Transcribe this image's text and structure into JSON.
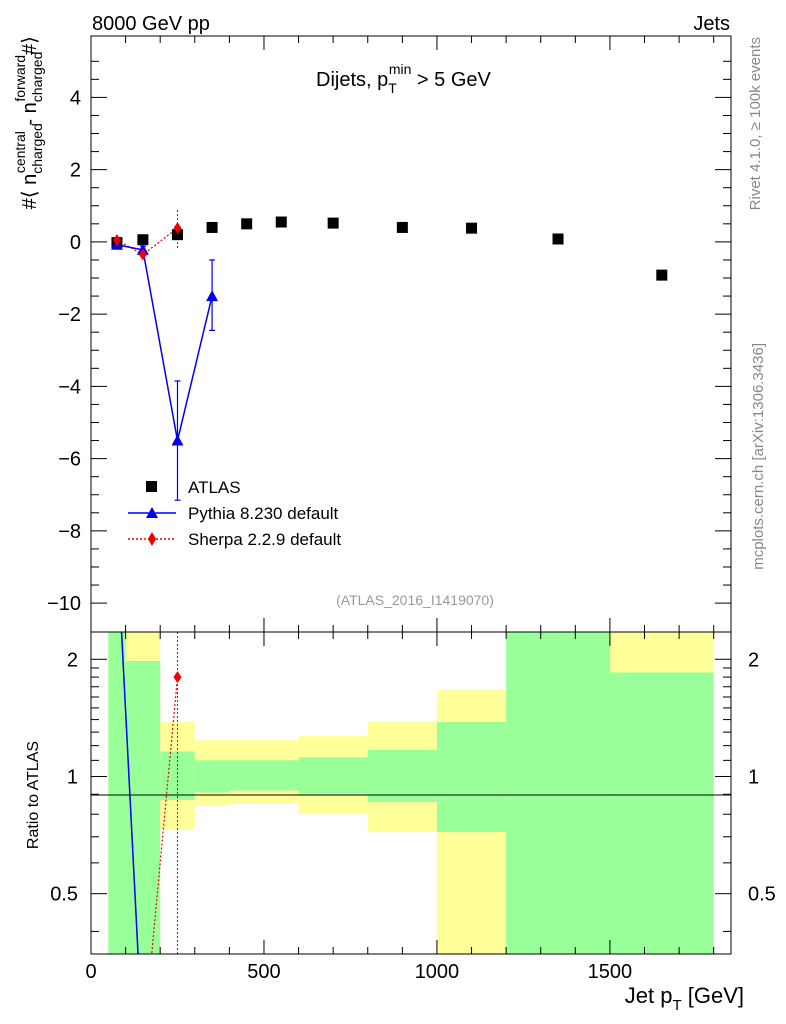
{
  "header": {
    "left": "8000 GeV pp",
    "right": "Jets"
  },
  "side_text": {
    "rivet": "Rivet 4.1.0, ≥ 100k events",
    "mcplots": "mcplots.cern.ch [arXiv:1306.3436]"
  },
  "chart_data": [
    {
      "type": "scatter",
      "panel": "main",
      "title": "Dijets, p_T^min > 5 GeV",
      "title_parts": {
        "main": "Dijets, p",
        "sub": "T",
        "sup": "min",
        "tail": " > 5 GeV"
      },
      "watermark": "(ATLAS_2016_I1419070)",
      "ylabel": "#⟨ n_charged^central - n_charged^forward #⟩",
      "ylabel_parts": {
        "open": "#⟨ n",
        "sub1": "charged",
        "sup1": "central",
        "mid": " - n",
        "sub2": "charged",
        "sup2": "forward",
        "close": "#⟩"
      },
      "xlim": [
        0,
        1850
      ],
      "ylim": [
        -10.8,
        5.7
      ],
      "yticks": [
        4,
        2,
        0,
        -2,
        -4,
        -6,
        -8,
        -10
      ],
      "ytick_labels": [
        "4",
        "2",
        "0",
        "−2",
        "−4",
        "−6",
        "−8",
        "−10"
      ],
      "legend_position": "lower-left",
      "series": [
        {
          "name": "ATLAS",
          "style": "black-square",
          "x": [
            75,
            150,
            250,
            350,
            450,
            550,
            700,
            900,
            1100,
            1350,
            1650
          ],
          "y": [
            -0.02,
            0.06,
            0.2,
            0.4,
            0.5,
            0.55,
            0.52,
            0.4,
            0.38,
            0.08,
            -0.92
          ]
        },
        {
          "name": "Pythia 8.230 default",
          "style": "blue-triangle-solid",
          "color": "#0000ee",
          "x": [
            75,
            150,
            250,
            350
          ],
          "y": [
            -0.08,
            -0.22,
            -5.5,
            -1.5
          ],
          "yerr_low": [
            0.05,
            0.1,
            1.65,
            0.95
          ],
          "yerr_high": [
            0.05,
            0.1,
            1.65,
            1.0
          ]
        },
        {
          "name": "Sherpa 2.2.9 default",
          "style": "red-diamond-dotted",
          "color": "#ee0000",
          "x": [
            75,
            150,
            250
          ],
          "y": [
            0.05,
            -0.35,
            0.38
          ],
          "yerr_low": [
            0.05,
            0.1,
            0.55
          ],
          "yerr_high": [
            0.05,
            0.1,
            0.55
          ]
        }
      ]
    },
    {
      "type": "area",
      "panel": "ratio",
      "ylabel": "Ratio to ATLAS",
      "xlabel": "Jet p_T [GeV]",
      "xlabel_parts": {
        "main": "Jet p",
        "sub": "T",
        "tail": " [GeV]"
      },
      "xlim": [
        0,
        1850
      ],
      "ylim": [
        0.35,
        2.35
      ],
      "yscale": "log",
      "yticks": [
        2,
        1,
        0.5
      ],
      "ytick_labels": [
        "2",
        "1",
        "0.5"
      ],
      "xticks": [
        0,
        500,
        1000,
        1500
      ],
      "xtick_labels": [
        "0",
        "500",
        "1000",
        "1500"
      ],
      "bins": [
        {
          "lo": 50,
          "hi": 100,
          "band_yellow": [
            0.35,
            2.35
          ],
          "band_green": [
            0.35,
            2.35
          ]
        },
        {
          "lo": 100,
          "hi": 200,
          "band_yellow": [
            0.35,
            2.35
          ],
          "band_green": [
            0.35,
            1.98
          ]
        },
        {
          "lo": 200,
          "hi": 300,
          "band_yellow": [
            0.73,
            1.38
          ],
          "band_green": [
            0.87,
            1.16
          ]
        },
        {
          "lo": 300,
          "hi": 400,
          "band_yellow": [
            0.84,
            1.24
          ],
          "band_green": [
            0.91,
            1.1
          ]
        },
        {
          "lo": 400,
          "hi": 600,
          "band_yellow": [
            0.85,
            1.24
          ],
          "band_green": [
            0.92,
            1.1
          ]
        },
        {
          "lo": 600,
          "hi": 800,
          "band_yellow": [
            0.8,
            1.27
          ],
          "band_green": [
            0.9,
            1.12
          ]
        },
        {
          "lo": 800,
          "hi": 1000,
          "band_yellow": [
            0.72,
            1.38
          ],
          "band_green": [
            0.86,
            1.17
          ]
        },
        {
          "lo": 1000,
          "hi": 1200,
          "band_yellow": [
            0.35,
            1.67
          ],
          "band_green": [
            0.72,
            1.38
          ]
        },
        {
          "lo": 1200,
          "hi": 1500,
          "band_yellow": [
            0.35,
            2.35
          ],
          "band_green": [
            0.35,
            2.35
          ]
        },
        {
          "lo": 1500,
          "hi": 1800,
          "band_yellow": [
            0.35,
            2.35
          ],
          "band_green": [
            0.35,
            1.85
          ]
        }
      ],
      "series": [
        {
          "name": "Pythia 8.230 default",
          "x": [
            75,
            150
          ],
          "y": [
            4.0,
            0.2
          ]
        },
        {
          "name": "Sherpa 2.2.9 default",
          "x": [
            150,
            250
          ],
          "y": [
            0.2,
            1.8
          ],
          "yerr_high_point": 1.8
        }
      ]
    }
  ]
}
